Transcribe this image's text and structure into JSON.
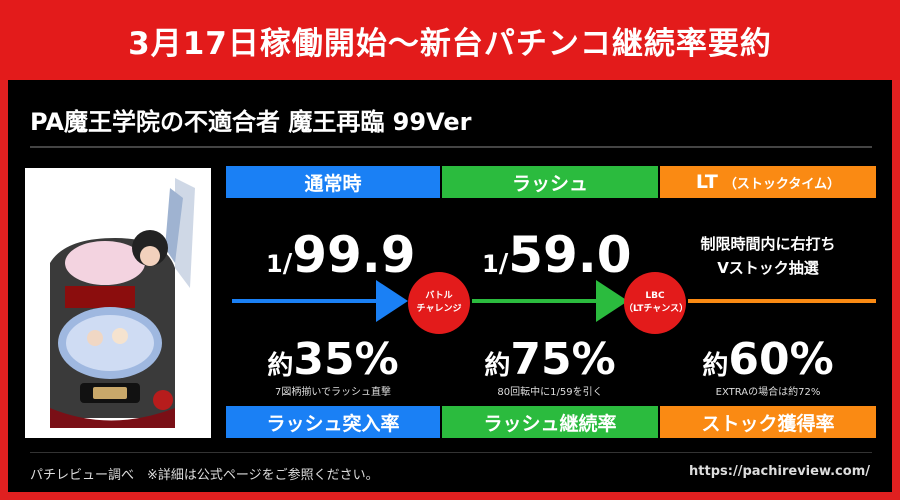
{
  "banner": {
    "title": "3月17日稼働開始〜新台パチンコ継続率要約"
  },
  "machine": {
    "title": "PA魔王学院の不適合者 魔王再臨 99Ver"
  },
  "columns": [
    {
      "header": "通常時",
      "probability_numerator": "1",
      "probability_denominator": "99.9",
      "rate_prefix": "約",
      "rate_value": "35%",
      "note": "7図柄揃いでラッシュ直撃",
      "footer": "ラッシュ突入率"
    },
    {
      "header": "ラッシュ",
      "probability_numerator": "1",
      "probability_denominator": "59.0",
      "rate_prefix": "約",
      "rate_value": "75%",
      "note": "80回転中に1/59を引く",
      "footer": "ラッシュ継続率"
    },
    {
      "header": "LT",
      "header_sub": "（ストックタイム）",
      "desc_line1": "制限時間内に右打ち",
      "desc_line2": "Vストック抽選",
      "rate_prefix": "約",
      "rate_value": "60%",
      "note": "EXTRAの場合は約72%",
      "footer": "ストック獲得率"
    }
  ],
  "badges": [
    {
      "line1": "バトル",
      "line2": "チャレンジ"
    },
    {
      "line1": "LBC",
      "line2": "（LTチャンス）"
    }
  ],
  "footer": {
    "source": "パチレビュー調べ　※詳細は公式ページをご参照ください。",
    "url": "https://pachireview.com/"
  },
  "colors": {
    "banner_red": "#e31b1b",
    "blue": "#1a80f5",
    "green": "#2bbb3e",
    "orange": "#fa8a13",
    "panel_black": "#000000"
  }
}
